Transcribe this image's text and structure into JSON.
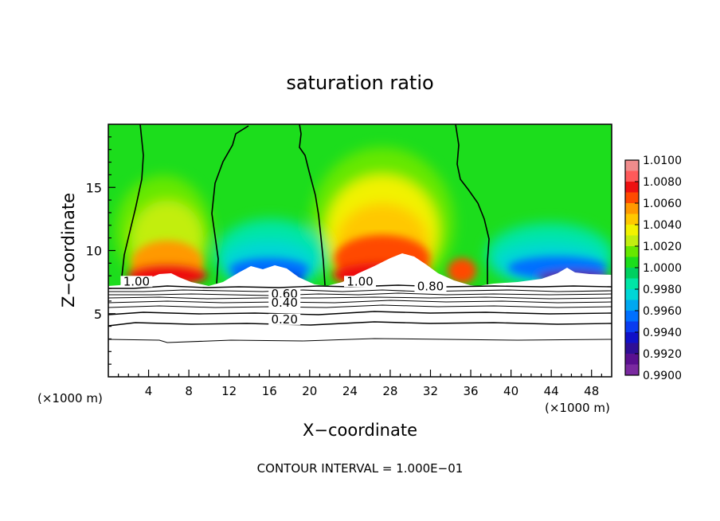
{
  "chart_data": {
    "type": "heatmap",
    "title": "saturation ratio",
    "xlabel": "X−coordinate",
    "ylabel": "Z−coordinate",
    "x_unit_left": "(×1000 m)",
    "x_unit_right": "(×1000 m)",
    "footer": "CONTOUR INTERVAL = 1.000E−01",
    "xlim": [
      0,
      50
    ],
    "ylim": [
      0,
      20
    ],
    "x_ticks": [
      4,
      8,
      12,
      16,
      20,
      24,
      28,
      32,
      36,
      40,
      44,
      48
    ],
    "y_ticks": [
      5,
      10,
      15
    ],
    "colorbar": {
      "labels": [
        "1.0100",
        "1.0080",
        "1.0060",
        "1.0040",
        "1.0020",
        "1.0000",
        "0.9980",
        "0.9960",
        "0.9940",
        "0.9920",
        "0.9900"
      ],
      "colors": [
        "#f08c8c",
        "#ff5a5a",
        "#ee1111",
        "#ff4a00",
        "#ff9900",
        "#ffc800",
        "#f2f200",
        "#c2ee10",
        "#66e800",
        "#1cdd1c",
        "#00d060",
        "#00e6a6",
        "#00d6d6",
        "#00a8f0",
        "#0070ff",
        "#0a3cf0",
        "#1010c8",
        "#2e0e96",
        "#5a1090",
        "#7a2aa0"
      ]
    },
    "contour_labels": [
      {
        "text": "1.00",
        "x": 2.8,
        "z": 7.3
      },
      {
        "text": "1.00",
        "x": 25.0,
        "z": 7.3
      },
      {
        "text": "0.80",
        "x": 32.0,
        "z": 6.9
      },
      {
        "text": "0.60",
        "x": 17.5,
        "z": 6.3
      },
      {
        "text": "0.40",
        "x": 17.5,
        "z": 5.6
      },
      {
        "text": "0.20",
        "x": 17.5,
        "z": 4.3
      }
    ]
  }
}
